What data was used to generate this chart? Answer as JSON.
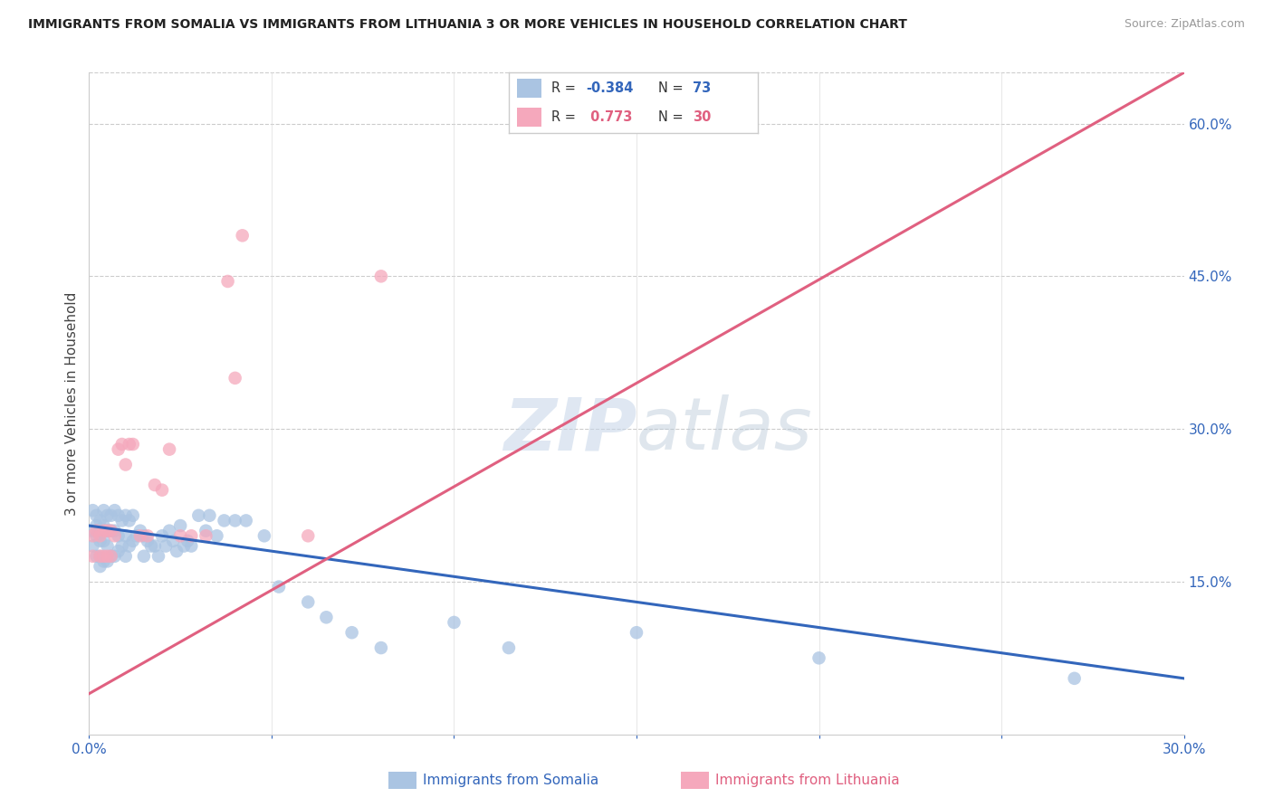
{
  "title": "IMMIGRANTS FROM SOMALIA VS IMMIGRANTS FROM LITHUANIA 3 OR MORE VEHICLES IN HOUSEHOLD CORRELATION CHART",
  "source": "Source: ZipAtlas.com",
  "ylabel": "3 or more Vehicles in Household",
  "xlim": [
    0.0,
    0.3
  ],
  "ylim": [
    0.0,
    0.65
  ],
  "xticks": [
    0.0,
    0.05,
    0.1,
    0.15,
    0.2,
    0.25,
    0.3
  ],
  "yticks_right": [
    0.15,
    0.3,
    0.45,
    0.6
  ],
  "yticklabels_right": [
    "15.0%",
    "30.0%",
    "45.0%",
    "60.0%"
  ],
  "grid_color": "#cccccc",
  "background_color": "#ffffff",
  "somalia_color": "#aac4e2",
  "lithuania_color": "#f5a8bc",
  "somalia_line_color": "#3366bb",
  "lithuania_line_color": "#e06080",
  "somalia_R": -0.384,
  "somalia_N": 73,
  "lithuania_R": 0.773,
  "lithuania_N": 30,
  "somalia_x": [
    0.001,
    0.001,
    0.001,
    0.002,
    0.002,
    0.002,
    0.002,
    0.003,
    0.003,
    0.003,
    0.003,
    0.003,
    0.004,
    0.004,
    0.004,
    0.004,
    0.005,
    0.005,
    0.005,
    0.005,
    0.006,
    0.006,
    0.006,
    0.007,
    0.007,
    0.007,
    0.008,
    0.008,
    0.008,
    0.009,
    0.009,
    0.01,
    0.01,
    0.01,
    0.011,
    0.011,
    0.012,
    0.012,
    0.013,
    0.014,
    0.015,
    0.015,
    0.016,
    0.017,
    0.018,
    0.019,
    0.02,
    0.021,
    0.022,
    0.023,
    0.024,
    0.025,
    0.026,
    0.027,
    0.028,
    0.03,
    0.032,
    0.033,
    0.035,
    0.037,
    0.04,
    0.043,
    0.048,
    0.052,
    0.06,
    0.065,
    0.072,
    0.08,
    0.1,
    0.115,
    0.15,
    0.2,
    0.27
  ],
  "somalia_y": [
    0.22,
    0.2,
    0.185,
    0.215,
    0.205,
    0.195,
    0.175,
    0.21,
    0.2,
    0.19,
    0.175,
    0.165,
    0.22,
    0.205,
    0.19,
    0.17,
    0.215,
    0.2,
    0.185,
    0.17,
    0.215,
    0.2,
    0.175,
    0.22,
    0.2,
    0.175,
    0.215,
    0.195,
    0.18,
    0.21,
    0.185,
    0.215,
    0.195,
    0.175,
    0.21,
    0.185,
    0.215,
    0.19,
    0.195,
    0.2,
    0.195,
    0.175,
    0.19,
    0.185,
    0.185,
    0.175,
    0.195,
    0.185,
    0.2,
    0.19,
    0.18,
    0.205,
    0.185,
    0.19,
    0.185,
    0.215,
    0.2,
    0.215,
    0.195,
    0.21,
    0.21,
    0.21,
    0.195,
    0.145,
    0.13,
    0.115,
    0.1,
    0.085,
    0.11,
    0.085,
    0.1,
    0.075,
    0.055
  ],
  "lithuania_x": [
    0.001,
    0.001,
    0.002,
    0.003,
    0.003,
    0.004,
    0.004,
    0.005,
    0.005,
    0.006,
    0.006,
    0.007,
    0.008,
    0.009,
    0.01,
    0.011,
    0.012,
    0.014,
    0.016,
    0.018,
    0.02,
    0.022,
    0.025,
    0.028,
    0.032,
    0.038,
    0.04,
    0.042,
    0.06,
    0.08
  ],
  "lithuania_y": [
    0.195,
    0.175,
    0.2,
    0.195,
    0.175,
    0.2,
    0.175,
    0.2,
    0.175,
    0.2,
    0.175,
    0.195,
    0.28,
    0.285,
    0.265,
    0.285,
    0.285,
    0.195,
    0.195,
    0.245,
    0.24,
    0.28,
    0.195,
    0.195,
    0.195,
    0.445,
    0.35,
    0.49,
    0.195,
    0.45
  ]
}
